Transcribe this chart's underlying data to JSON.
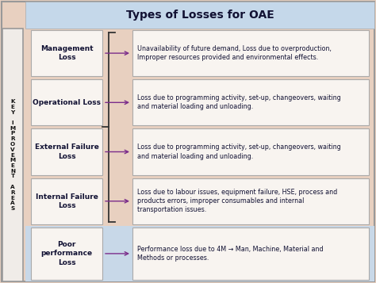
{
  "title": "Types of Losses for OAE",
  "title_bg": "#c5d8ea",
  "main_bg": "#e8d0c0",
  "bottom_bg": "#c8d8e8",
  "left_strip_bg": "#f0ece8",
  "left_strip_border": "#999999",
  "left_label_text": "K\nE\nY\n \nI\nM\nP\nR\nO\nV\nE\nM\nE\nN\nT\n \nA\nR\nE\nA\nS",
  "box_bg": "#f8f4f0",
  "box_border": "#aaaaaa",
  "arrow_color": "#7b2d8b",
  "rows": [
    {
      "label": "Management\nLoss",
      "desc": "Unavailability of future demand, Loss due to overproduction,\nImproper resources provided and environmental effects.",
      "bg": "#e8d0c0"
    },
    {
      "label": "Operational Loss",
      "desc": "Loss due to programming activity, set-up, changeovers, waiting\nand material loading and unloading.",
      "bg": "#e8d0c0"
    },
    {
      "label": "External Failure\nLoss",
      "desc": "Loss due to programming activity, set-up, changeovers, waiting\nand material loading and unloading.",
      "bg": "#e8d0c0"
    },
    {
      "label": "Internal Failure\nLoss",
      "desc": "Loss due to labour issues, equipment failure, HSE, process and\nproducts errors, improper consumables and internal\ntransportation issues.",
      "bg": "#e8d0c0"
    },
    {
      "label": "Poor\nperformance\nLoss",
      "desc": "Performance loss due to 4M → Man, Machine, Material and\nMethods or processes.",
      "bg": "#c8d8e8"
    }
  ]
}
